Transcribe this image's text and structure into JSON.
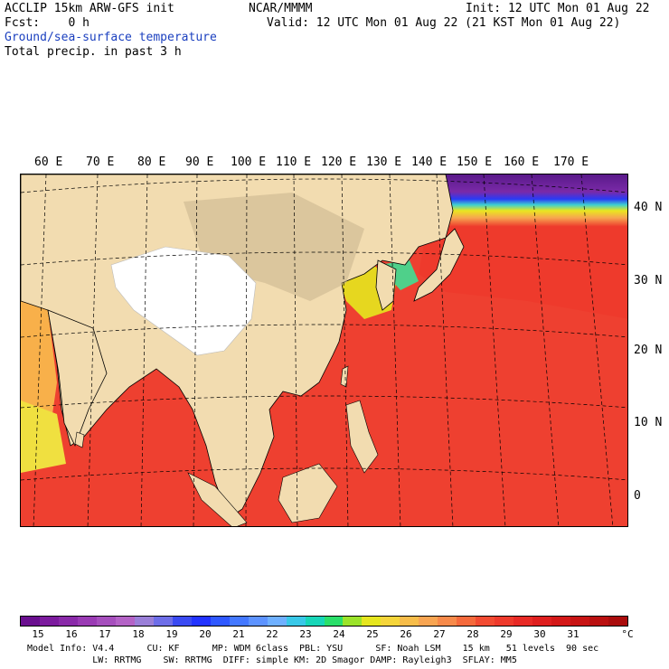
{
  "header": {
    "left": [
      "ACCLIP 15km ARW-GFS init",
      "Fcst:    0 h"
    ],
    "center": "NCAR/MMMM",
    "right_init": "Init: 12 UTC Mon 01 Aug 22",
    "right_valid": "Valid: 12 UTC Mon 01 Aug 22 (21 KST Mon 01 Aug 22)",
    "field1": "Ground/sea-surface temperature",
    "field2": "Total precip. in past 3 h"
  },
  "longitudes": [
    "60 E",
    "70 E",
    "80 E",
    "90 E",
    "100 E",
    "110 E",
    "120 E",
    "130 E",
    "140 E",
    "150 E",
    "160 E",
    "170 E"
  ],
  "latitudes": [
    "40 N",
    "30 N",
    "20 N",
    "10 N",
    "0"
  ],
  "colorbar": {
    "colors": [
      "#6a0f8f",
      "#7c1b9e",
      "#8a2aa9",
      "#9a3bb4",
      "#a64fbd",
      "#b463c6",
      "#9a7fd8",
      "#6e6ee8",
      "#3a4af2",
      "#2233ff",
      "#2f58ff",
      "#4478ff",
      "#5d93ff",
      "#6fb0ff",
      "#39c8e8",
      "#17d6b8",
      "#2adf6a",
      "#9be32a",
      "#e6e61f",
      "#f5d53a",
      "#f7bd4a",
      "#f8a552",
      "#f78a4a",
      "#f56a3c",
      "#f24b32",
      "#ee3a2c",
      "#e82a26",
      "#df1f1f",
      "#d41818",
      "#c81414",
      "#ba1010",
      "#aa0c0c"
    ],
    "ticks": [
      "15",
      "16",
      "17",
      "18",
      "19",
      "20",
      "21",
      "22",
      "23",
      "24",
      "25",
      "26",
      "27",
      "28",
      "29",
      "30",
      "31"
    ],
    "unit": "°C"
  },
  "footer": {
    "line1": "Model Info: V4.4      CU: KF      MP: WDM 6class  PBL: YSU      SF: Noah LSM    15 km   51 levels  90 sec",
    "line2": "            LW: RRTMG    SW: RRTMG  DIFF: simple KM: 2D Smagor DAMP: Rayleigh3  SFLAY: MM5"
  }
}
